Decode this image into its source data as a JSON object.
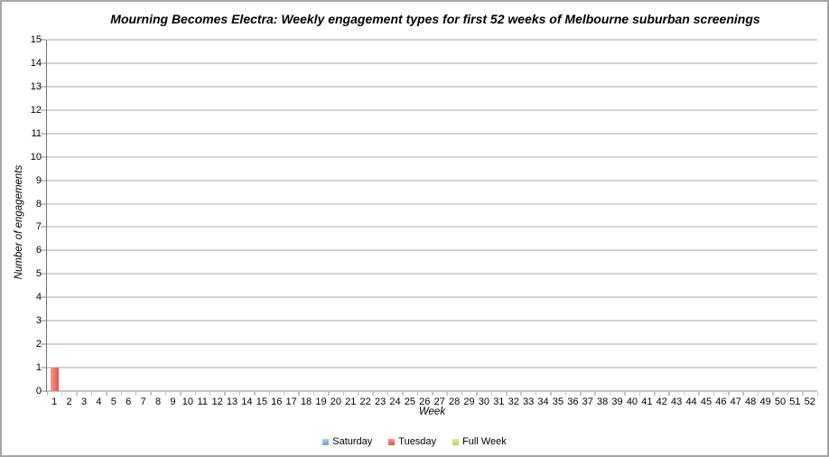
{
  "chart_data": {
    "type": "bar",
    "title": "Mourning Becomes Electra: Weekly engagement types for first 52 weeks of Melbourne suburban screenings",
    "xlabel": "Week",
    "ylabel": "Number of engagements",
    "ylim": [
      0,
      15
    ],
    "ytick_step": 1,
    "grid": true,
    "legend_position": "bottom",
    "categories": [
      1,
      2,
      3,
      4,
      5,
      6,
      7,
      8,
      9,
      10,
      11,
      12,
      13,
      14,
      15,
      16,
      17,
      18,
      19,
      20,
      21,
      22,
      23,
      24,
      25,
      26,
      27,
      28,
      29,
      30,
      31,
      32,
      33,
      34,
      35,
      36,
      37,
      38,
      39,
      40,
      41,
      42,
      43,
      44,
      45,
      46,
      47,
      48,
      49,
      50,
      51,
      52
    ],
    "series": [
      {
        "name": "Saturday",
        "color": "#6EA6D8",
        "color_light": "#A9CBEA",
        "values": [
          0,
          0,
          0,
          0,
          0,
          0,
          0,
          0,
          0,
          0,
          0,
          0,
          0,
          0,
          0,
          0,
          0,
          0,
          0,
          0,
          0,
          0,
          0,
          0,
          0,
          0,
          0,
          0,
          0,
          0,
          0,
          0,
          0,
          0,
          0,
          0,
          0,
          0,
          0,
          0,
          0,
          0,
          0,
          0,
          0,
          0,
          0,
          0,
          0,
          0,
          0,
          0
        ]
      },
      {
        "name": "Tuesday",
        "color": "#E0544A",
        "color_light": "#F49A91",
        "values": [
          1,
          0,
          0,
          0,
          0,
          0,
          0,
          0,
          0,
          0,
          0,
          0,
          0,
          0,
          0,
          0,
          0,
          0,
          0,
          0,
          0,
          0,
          0,
          0,
          0,
          0,
          0,
          0,
          0,
          0,
          0,
          0,
          0,
          0,
          0,
          0,
          0,
          0,
          0,
          0,
          0,
          0,
          0,
          0,
          0,
          0,
          0,
          0,
          0,
          0,
          0,
          0
        ]
      },
      {
        "name": "Full Week",
        "color": "#B6D455",
        "color_light": "#DCEBA2",
        "values": [
          0,
          0,
          0,
          0,
          0,
          0,
          0,
          0,
          0,
          0,
          0,
          0,
          0,
          0,
          0,
          0,
          0,
          0,
          0,
          0,
          0,
          0,
          0,
          0,
          0,
          0,
          0,
          0,
          0,
          0,
          0,
          0,
          0,
          0,
          0,
          0,
          0,
          0,
          0,
          0,
          0,
          0,
          0,
          0,
          0,
          0,
          0,
          0,
          0,
          0,
          0,
          0
        ]
      }
    ]
  },
  "colors": {
    "background": "#FFFFFF",
    "frame_border": "#A6A6A6",
    "gridline": "#D3D3D3",
    "y_axis_line": "#707070",
    "x_axis_line": "#C5C5C5",
    "tick": "#C5C5C5",
    "text": "#000000"
  }
}
